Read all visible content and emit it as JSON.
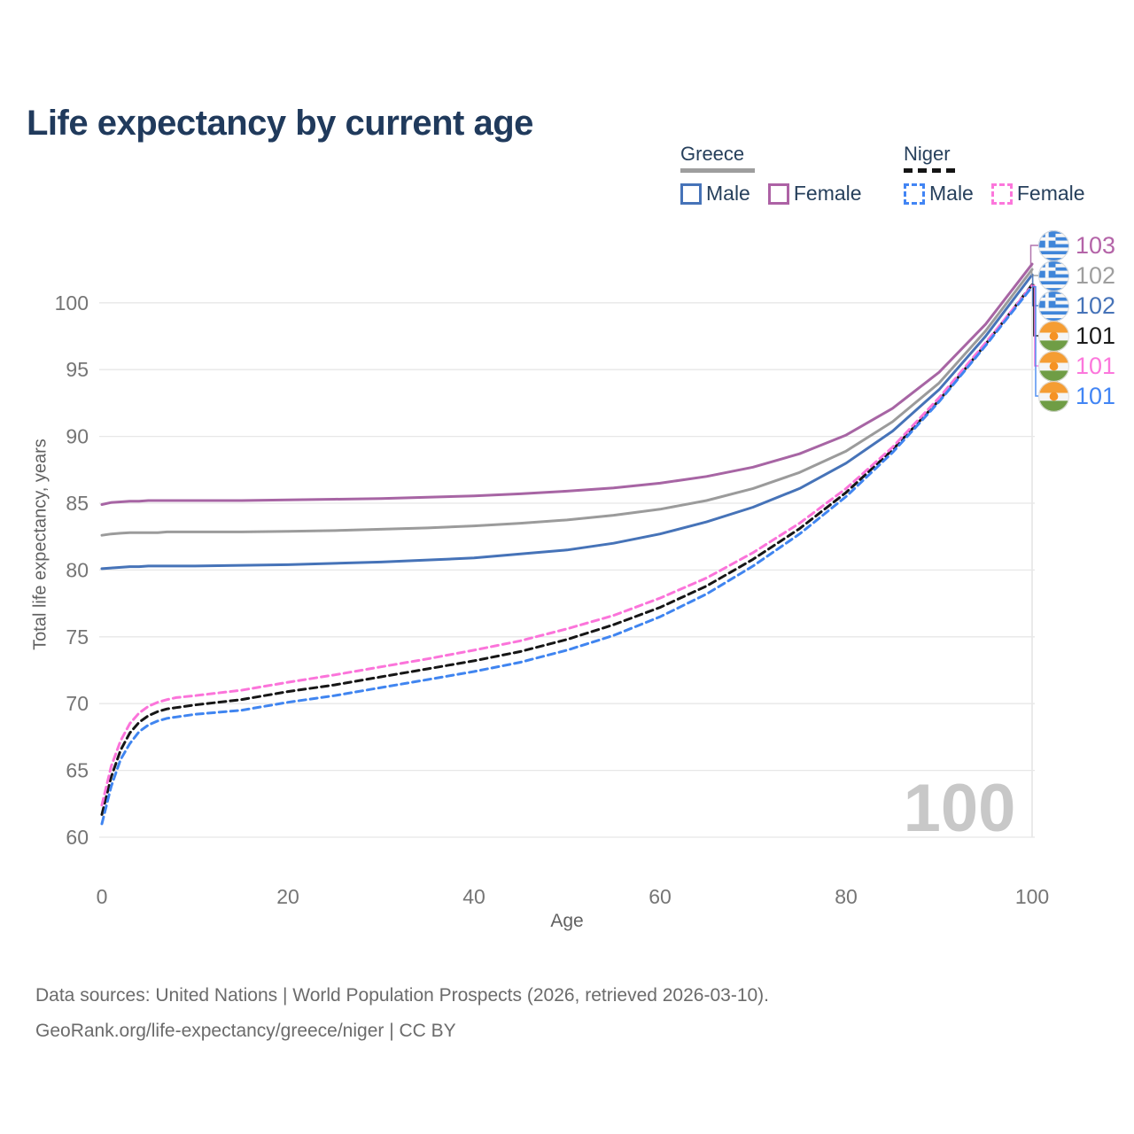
{
  "title": "Life expectancy by current age",
  "legend": {
    "groups": [
      {
        "id": "greece",
        "label": "Greece",
        "underline_style": "solid",
        "underline_color": "#9e9e9e",
        "underline_width": 84,
        "items": [
          {
            "label": "Male",
            "color": "#4673b8",
            "box_style": "solid"
          },
          {
            "label": "Female",
            "color": "#ad62a5",
            "box_style": "solid"
          }
        ]
      },
      {
        "id": "niger",
        "label": "Niger",
        "underline_style": "dashed",
        "underline_color": "#141414",
        "underline_width": 62,
        "items": [
          {
            "label": "Male",
            "color": "#4285f4",
            "box_style": "dashed"
          },
          {
            "label": "Female",
            "color": "#fc77dc",
            "box_style": "dashed"
          }
        ]
      }
    ]
  },
  "chart_data": {
    "type": "line",
    "title": "Life expectancy by current age",
    "xlabel": "Age",
    "ylabel": "Total life expectancy, years",
    "xlim": [
      0,
      100
    ],
    "ylim": [
      60,
      103
    ],
    "xticks": [
      0,
      20,
      40,
      60,
      80,
      100
    ],
    "yticks": [
      60,
      65,
      70,
      75,
      80,
      85,
      90,
      95,
      100
    ],
    "grid": "horizontal",
    "watermark": "100",
    "current_age_marker": 100,
    "ages": [
      0,
      1,
      2,
      3,
      4,
      5,
      6,
      7,
      8,
      10,
      15,
      20,
      25,
      30,
      35,
      40,
      45,
      50,
      55,
      60,
      65,
      70,
      75,
      80,
      85,
      90,
      95,
      100
    ],
    "series": [
      {
        "id": "greece-female",
        "country": "Greece",
        "sex": "Female",
        "style": "solid",
        "color": "#a765a4",
        "label_color": "#b464a8",
        "end_label": "103",
        "flag": "greece",
        "values": [
          84.9,
          85.05,
          85.1,
          85.15,
          85.15,
          85.2,
          85.2,
          85.2,
          85.2,
          85.2,
          85.2,
          85.25,
          85.3,
          85.35,
          85.45,
          85.55,
          85.7,
          85.9,
          86.15,
          86.5,
          87.0,
          87.7,
          88.7,
          90.1,
          92.1,
          94.8,
          98.4,
          102.9
        ]
      },
      {
        "id": "greece-average",
        "country": "Greece",
        "sex": "Both",
        "style": "solid",
        "color": "#9b9b9b",
        "label_color": "#9e9e9e",
        "end_label": "102",
        "flag": "greece",
        "values": [
          82.6,
          82.7,
          82.75,
          82.8,
          82.8,
          82.8,
          82.8,
          82.85,
          82.85,
          82.85,
          82.85,
          82.9,
          82.95,
          83.05,
          83.15,
          83.3,
          83.5,
          83.75,
          84.1,
          84.55,
          85.2,
          86.1,
          87.3,
          88.9,
          91.1,
          94.0,
          97.9,
          102.5
        ]
      },
      {
        "id": "greece-male",
        "country": "Greece",
        "sex": "Male",
        "style": "solid",
        "color": "#4673b8",
        "label_color": "#4673b8",
        "end_label": "102",
        "flag": "greece",
        "values": [
          80.1,
          80.15,
          80.2,
          80.25,
          80.25,
          80.3,
          80.3,
          80.3,
          80.3,
          80.3,
          80.35,
          80.4,
          80.5,
          80.6,
          80.75,
          80.9,
          81.2,
          81.5,
          82.0,
          82.7,
          83.6,
          84.7,
          86.1,
          88.0,
          90.4,
          93.5,
          97.5,
          102.1
        ]
      },
      {
        "id": "niger-average",
        "country": "Niger",
        "sex": "Both",
        "style": "dashed",
        "color": "#161616",
        "label_color": "#1b1b1b",
        "end_label": "101",
        "flag": "niger",
        "values": [
          61.7,
          64.5,
          66.5,
          67.8,
          68.6,
          69.1,
          69.4,
          69.6,
          69.7,
          69.9,
          70.3,
          70.9,
          71.4,
          72.0,
          72.6,
          73.2,
          73.9,
          74.8,
          75.9,
          77.2,
          78.8,
          80.8,
          83.1,
          85.8,
          89.0,
          92.7,
          96.9,
          101.35
        ]
      },
      {
        "id": "niger-female",
        "country": "Niger",
        "sex": "Female",
        "style": "dashed",
        "color": "#fb74da",
        "label_color": "#fc77dc",
        "end_label": "101",
        "flag": "niger",
        "values": [
          62.4,
          65.3,
          67.2,
          68.5,
          69.3,
          69.8,
          70.1,
          70.3,
          70.45,
          70.6,
          71.0,
          71.6,
          72.15,
          72.75,
          73.35,
          74.0,
          74.7,
          75.6,
          76.6,
          77.9,
          79.4,
          81.3,
          83.5,
          86.1,
          89.2,
          92.9,
          97.0,
          101.3
        ]
      },
      {
        "id": "niger-male",
        "country": "Niger",
        "sex": "Male",
        "style": "dashed",
        "color": "#4085f0",
        "label_color": "#4285f4",
        "end_label": "101",
        "flag": "niger",
        "values": [
          61.0,
          63.8,
          65.8,
          67.0,
          67.9,
          68.4,
          68.7,
          68.9,
          69.0,
          69.2,
          69.5,
          70.1,
          70.6,
          71.2,
          71.8,
          72.4,
          73.1,
          74.0,
          75.1,
          76.5,
          78.2,
          80.3,
          82.7,
          85.5,
          88.8,
          92.6,
          96.8,
          101.2
        ]
      }
    ]
  },
  "footer": {
    "line1": "Data sources: United Nations | World Population Prospects (2026, retrieved 2026-03-10).",
    "line2": "GeoRank.org/life-expectancy/greece/niger | CC BY"
  }
}
